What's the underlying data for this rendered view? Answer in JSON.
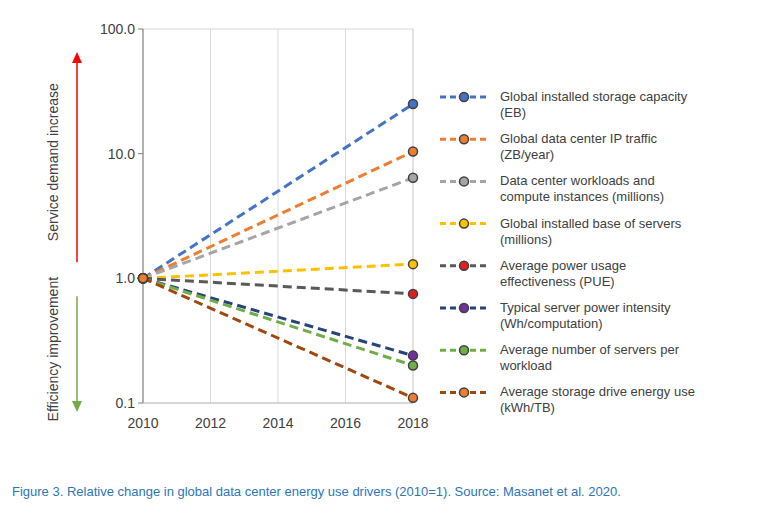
{
  "chart_data": {
    "type": "line",
    "caption": "Figure 3. Relative change in global data center energy use drivers (2010=1). Source: Masanet et al. 2020.",
    "annotations": [
      "Service demand increase",
      "Efficiency improvement"
    ],
    "x": [
      2010,
      2018
    ],
    "xlim": [
      2010,
      2018
    ],
    "xticks": [
      2010,
      2012,
      2014,
      2016,
      2018
    ],
    "ylim": [
      0.1,
      100
    ],
    "yticks": [
      0.1,
      {
        "value": 1,
        "label": "1.0"
      },
      {
        "value": 10,
        "label": "10.0"
      },
      {
        "value": 100,
        "label": "100.0"
      }
    ],
    "log": "y",
    "grid": true,
    "legend": "right",
    "marker": "circle",
    "line_style": "dashed",
    "series": [
      {
        "name": "Global installed storage capacity (EB)",
        "color": "#4472c4",
        "colors": [
          "#4472c4",
          "#4472c4"
        ],
        "values": [
          1,
          25
        ]
      },
      {
        "name": "Global data center IP traffic (ZB/year)",
        "color": "#ed7d31",
        "colors": [
          "#ed7d31",
          "#ed7d31"
        ],
        "values": [
          1,
          10.4
        ]
      },
      {
        "name": "Data center workloads and compute instances (millions)",
        "color": "#a5a5a5",
        "colors": [
          "#a5a5a5",
          "#a5a5a5"
        ],
        "values": [
          1,
          6.4
        ]
      },
      {
        "name": "Global installed base of servers (millions)",
        "color": "#ffc000",
        "colors": [
          "#ffc000",
          "#ffc000"
        ],
        "values": [
          1,
          1.3
        ]
      },
      {
        "name": "Average power usage effectiveness (PUE)",
        "color": "#595959",
        "colors": [
          "#e02020",
          "#e02020"
        ],
        "values": [
          1,
          0.75
        ]
      },
      {
        "name": "Typical server power intensity (Wh/computation)",
        "color": "#264478",
        "colors": [
          "#7030a0",
          "#7030a0"
        ],
        "values": [
          1,
          0.24
        ]
      },
      {
        "name": "Average number of servers per workload",
        "color": "#70ad47",
        "colors": [
          "#70ad47",
          "#70ad47"
        ],
        "values": [
          1,
          0.2
        ]
      },
      {
        "name": "Average storage drive energy use (kWh/TB)",
        "color": "#9e480e",
        "colors": [
          "#ed7d31",
          "#ed7d31"
        ],
        "values": [
          1,
          0.11
        ]
      }
    ]
  }
}
